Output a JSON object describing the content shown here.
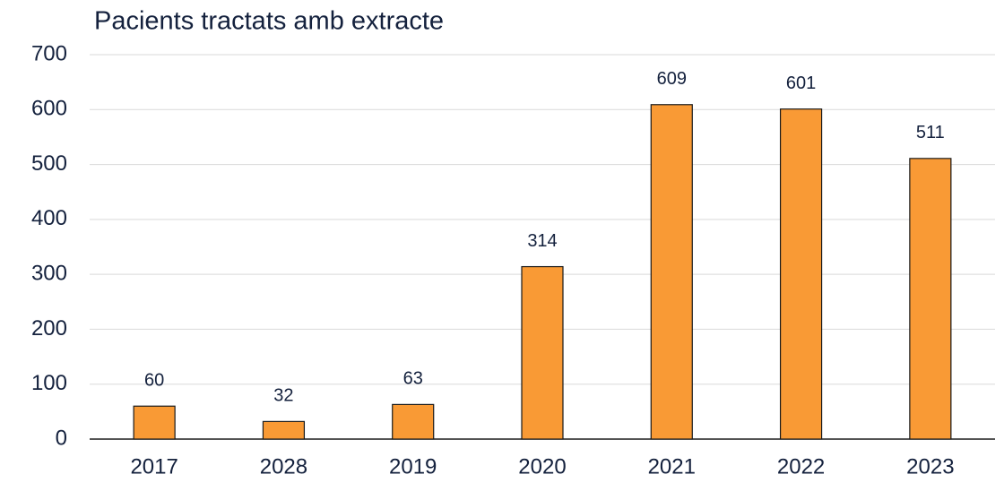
{
  "chart_data": {
    "type": "bar",
    "title": "Pacients tractats amb extracte",
    "categories": [
      "2017",
      "2028",
      "2019",
      "2020",
      "2021",
      "2022",
      "2023"
    ],
    "values": [
      60,
      32,
      63,
      314,
      609,
      601,
      511
    ],
    "color": "#f99a35",
    "ylim": [
      0,
      700
    ],
    "yticks": [
      0,
      100,
      200,
      300,
      400,
      500,
      600,
      700
    ],
    "grid": true
  }
}
